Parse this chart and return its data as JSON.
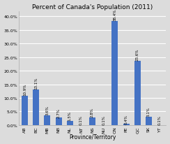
{
  "title": "Percent of Canada's Population (2011)",
  "xlabel": "Province/Territory",
  "ylabel": "",
  "categories": [
    "AB",
    "BC",
    "MB",
    "NB",
    "NL",
    "NT",
    "NS",
    "NU",
    "ON",
    "PE",
    "QC",
    "SK",
    "YT"
  ],
  "values": [
    10.9,
    13.1,
    3.6,
    2.7,
    1.5,
    0.1,
    2.8,
    0.1,
    38.4,
    0.4,
    23.6,
    3.1,
    0.1
  ],
  "bar_color": "#4472C4",
  "ylim": [
    0,
    42
  ],
  "yticks": [
    0.0,
    5.0,
    10.0,
    15.0,
    20.0,
    25.0,
    30.0,
    35.0,
    40.0
  ],
  "background_color": "#dcdcdc",
  "plot_bg_color": "#dcdcdc",
  "grid_color": "#ffffff",
  "title_fontsize": 6.5,
  "label_fontsize": 5.5,
  "tick_fontsize": 4.5,
  "bar_label_fontsize": 4.0
}
